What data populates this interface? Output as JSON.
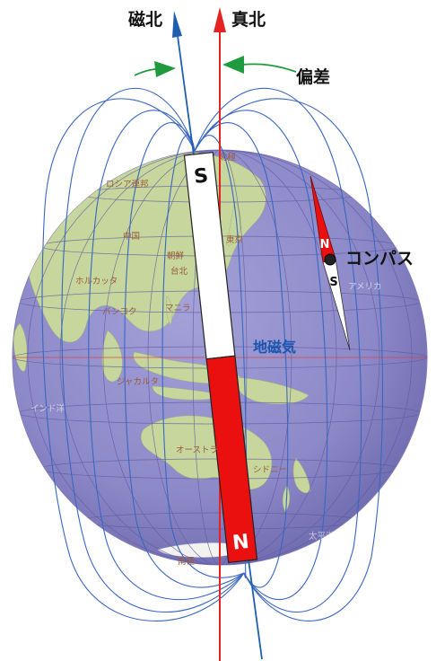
{
  "labels": {
    "magnetic_north": "磁北",
    "true_north": "真北",
    "declination": "偏差",
    "compass": "コンパス",
    "geomagnetism": "地磁気"
  },
  "bar_magnet": {
    "top_pole": "S",
    "bottom_pole": "N"
  },
  "compass_needle": {
    "north_letter": "N",
    "south_letter": "S"
  },
  "map_labels": [
    "北極",
    "ロシア連邦",
    "中国",
    "東京",
    "朝鮮",
    "台北",
    "ホルカッタ",
    "バンコク",
    "マニラ",
    "ジャカルタ",
    "オーストラ",
    "シドニー",
    "南極"
  ],
  "faint_labels": [
    "インド洋",
    "アメリカ",
    "太平洋"
  ],
  "colors": {
    "globe_ocean": "#8e8bcb",
    "land": "#c4d59a",
    "field_lines": "#3a66c2",
    "true_north_line": "#e52320",
    "magnetic_north_arrow": "#1f5fb0",
    "declination_arrows": "#1f9a3e",
    "magnet_red": "#ea1010",
    "magnet_white": "#ffffff"
  }
}
